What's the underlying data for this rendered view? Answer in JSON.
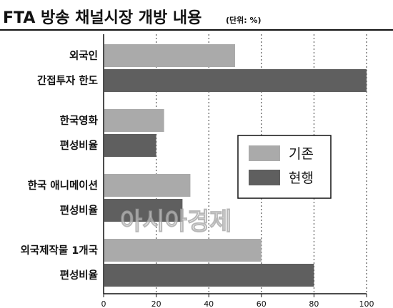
{
  "title": "FTA 방송 채널시장 개방 내용",
  "unit_label": "(단위: %)",
  "watermark": "아시아경제",
  "colors": {
    "series_1": "#aaaaaa",
    "series_2": "#5f5f5f",
    "axis": "#111111"
  },
  "chart_data": {
    "type": "bar",
    "orientation": "horizontal",
    "categories": [
      [
        "외국인",
        "간접투자 한도"
      ],
      [
        "한국영화",
        "편성비율"
      ],
      [
        "한국 애니메이션",
        "편성비율"
      ],
      [
        "외국제작물 1개국",
        "편성비율"
      ]
    ],
    "series": [
      {
        "name": "기존",
        "values": [
          50,
          23,
          33,
          60
        ]
      },
      {
        "name": "현행",
        "values": [
          100,
          20,
          30,
          80
        ]
      }
    ],
    "xlim": [
      0,
      100
    ],
    "xticks": [
      0,
      20,
      40,
      60,
      80,
      100
    ],
    "grid": true,
    "legend": "right"
  }
}
